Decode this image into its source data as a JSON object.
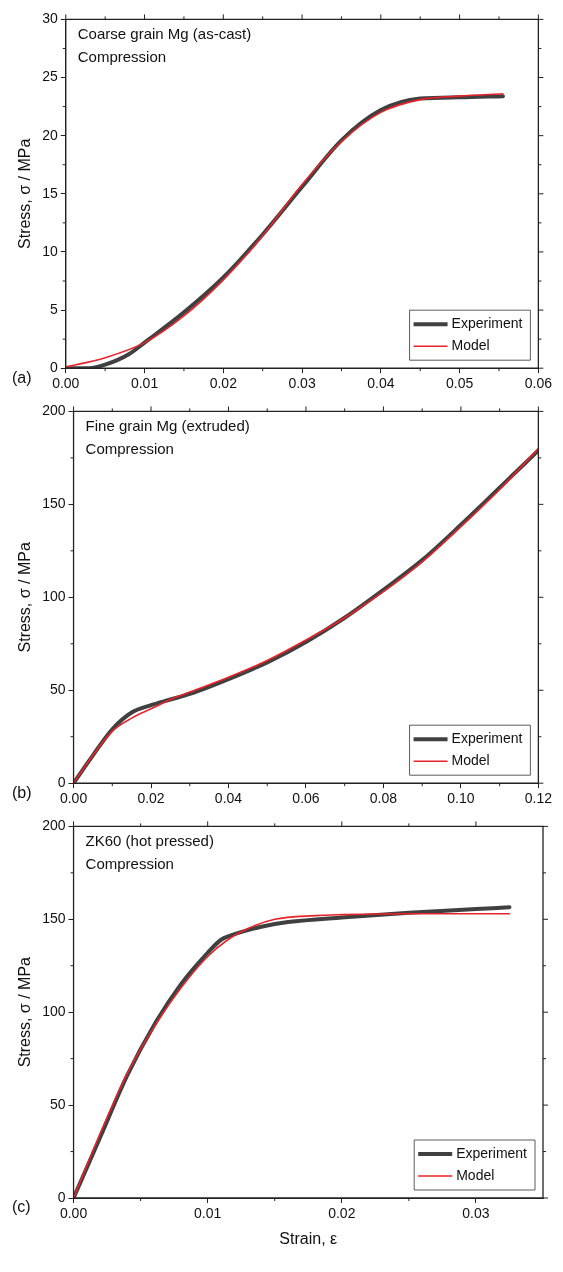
{
  "chart_data": [
    {
      "type": "line",
      "title": "Coarse grain Mg (as-cast)",
      "subtitle": "Compression",
      "ylabel": "Stress, σ / MPa",
      "annotations": [
        "(a)"
      ],
      "xlim": [
        0,
        0.06
      ],
      "xticks": [
        {
          "value": 0,
          "label": "0.00"
        },
        {
          "value": 0.01,
          "label": "0.01"
        },
        {
          "value": 0.02,
          "label": "0.02"
        },
        {
          "value": 0.03,
          "label": "0.03"
        },
        {
          "value": 0.04,
          "label": "0.04"
        },
        {
          "value": 0.05,
          "label": "0.05"
        },
        {
          "value": 0.06,
          "label": "0.06"
        }
      ],
      "ylim": [
        0,
        30
      ],
      "yticks": [
        0,
        5,
        10,
        15,
        20,
        25,
        30
      ],
      "legend": "bottom right",
      "grid": false,
      "marker": "none",
      "line_style": "solid",
      "series": [
        {
          "name": "Experiment",
          "color": "#404040",
          "x": [
            0,
            0.003,
            0.005,
            0.008,
            0.01,
            0.015,
            0.02,
            0.025,
            0.03,
            0.035,
            0.04,
            0.045,
            0.05,
            0.0555
          ],
          "values": [
            0,
            0,
            0.3,
            1.2,
            2.2,
            4.8,
            7.8,
            11.5,
            15.6,
            19.6,
            22.2,
            23.2,
            23.3,
            23.4
          ]
        },
        {
          "name": "Model",
          "color": "#e8232a",
          "x": [
            0,
            0.005,
            0.01,
            0.015,
            0.02,
            0.025,
            0.03,
            0.035,
            0.04,
            0.045,
            0.05,
            0.0555
          ],
          "values": [
            0.1,
            0.9,
            2.2,
            4.5,
            7.6,
            11.4,
            15.8,
            19.5,
            22.0,
            23.1,
            23.4,
            23.6
          ]
        }
      ]
    },
    {
      "type": "line",
      "title": "Fine grain Mg (extruded)",
      "subtitle": "Compression",
      "ylabel": "Stress, σ / MPa",
      "annotations": [
        "(b)"
      ],
      "xlim": [
        0,
        0.12
      ],
      "xticks": [
        {
          "value": 0,
          "label": "0.00"
        },
        {
          "value": 0.02,
          "label": "0.02"
        },
        {
          "value": 0.04,
          "label": "0.04"
        },
        {
          "value": 0.06,
          "label": "0.06"
        },
        {
          "value": 0.08,
          "label": "0.08"
        },
        {
          "value": 0.1,
          "label": "0.10"
        },
        {
          "value": 0.12,
          "label": "0.12"
        }
      ],
      "ylim": [
        0,
        200
      ],
      "yticks": [
        0,
        50,
        100,
        150,
        200
      ],
      "legend": "bottom right",
      "grid": false,
      "marker": "none",
      "line_style": "solid",
      "series": [
        {
          "name": "Experiment",
          "color": "#404040",
          "x": [
            0,
            0.005,
            0.01,
            0.015,
            0.02,
            0.025,
            0.03,
            0.04,
            0.05,
            0.06,
            0.07,
            0.08,
            0.09,
            0.1,
            0.11,
            0.12
          ],
          "values": [
            0,
            15,
            29,
            38,
            42,
            45,
            48,
            56,
            65,
            76,
            89,
            104,
            120,
            139,
            159,
            179
          ]
        },
        {
          "name": "Model",
          "color": "#e8232a",
          "x": [
            0,
            0.005,
            0.01,
            0.015,
            0.02,
            0.025,
            0.03,
            0.04,
            0.05,
            0.06,
            0.07,
            0.08,
            0.09,
            0.1,
            0.11,
            0.12
          ],
          "values": [
            0,
            15,
            28,
            35,
            40,
            45,
            49,
            57,
            66,
            77,
            89,
            103,
            119,
            138,
            158,
            180
          ]
        }
      ]
    },
    {
      "type": "line",
      "title": "ZK60 (hot pressed)",
      "subtitle": "Compression",
      "xlabel": "Strain, ε",
      "ylabel": "Stress, σ / MPa",
      "annotations": [
        "(c)"
      ],
      "xlim": [
        0,
        0.035
      ],
      "xticks": [
        {
          "value": 0,
          "label": "0.00"
        },
        {
          "value": 0.01,
          "label": "0.01"
        },
        {
          "value": 0.02,
          "label": "0.02"
        },
        {
          "value": 0.03,
          "label": "0.03"
        }
      ],
      "ylim": [
        0,
        200
      ],
      "yticks": [
        0,
        50,
        100,
        150,
        200
      ],
      "legend": "bottom right",
      "grid": false,
      "marker": "none",
      "line_style": "solid",
      "series": [
        {
          "name": "Experiment",
          "color": "#404040",
          "x": [
            0,
            0.002,
            0.004,
            0.006,
            0.008,
            0.01,
            0.011,
            0.012,
            0.014,
            0.016,
            0.02,
            0.025,
            0.03,
            0.0325
          ],
          "values": [
            0,
            33,
            66,
            93,
            115,
            132,
            139,
            142,
            146,
            148.5,
            151,
            153.5,
            155.5,
            156.5
          ]
        },
        {
          "name": "Model",
          "color": "#e8232a",
          "x": [
            0,
            0.002,
            0.004,
            0.006,
            0.008,
            0.01,
            0.0115,
            0.013,
            0.015,
            0.018,
            0.02,
            0.025,
            0.03,
            0.0325
          ],
          "values": [
            0,
            35,
            67,
            92,
            113,
            130,
            139,
            145,
            150,
            152,
            152.5,
            153,
            153,
            153
          ]
        }
      ]
    }
  ]
}
